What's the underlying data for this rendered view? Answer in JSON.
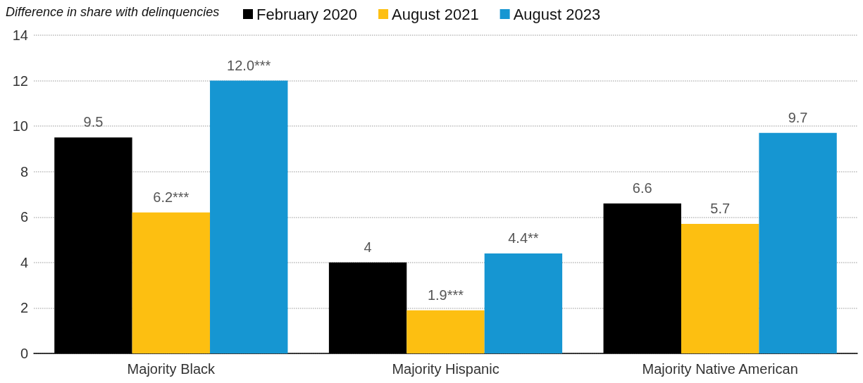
{
  "chart_data": {
    "type": "bar",
    "ylabel": "Difference in share with delinquencies",
    "categories": [
      "Majority Black",
      "Majority Hispanic",
      "Majority Native American"
    ],
    "series": [
      {
        "name": "February 2020",
        "color": "#000000",
        "values": [
          9.5,
          4,
          6.6
        ],
        "value_labels": [
          "9.5",
          "4",
          "6.6"
        ]
      },
      {
        "name": "August 2021",
        "color": "#fdbf11",
        "values": [
          6.2,
          1.9,
          5.7
        ],
        "value_labels": [
          "6.2***",
          "1.9***",
          "5.7"
        ]
      },
      {
        "name": "August 2023",
        "color": "#1696d2",
        "values": [
          12.0,
          4.4,
          9.7
        ],
        "value_labels": [
          "12.0***",
          "4.4**",
          "9.7"
        ]
      }
    ],
    "ylim": [
      0,
      14
    ],
    "yticks": [
      0,
      2,
      4,
      6,
      8,
      10,
      12,
      14
    ],
    "grid": "y",
    "legend": "top"
  }
}
